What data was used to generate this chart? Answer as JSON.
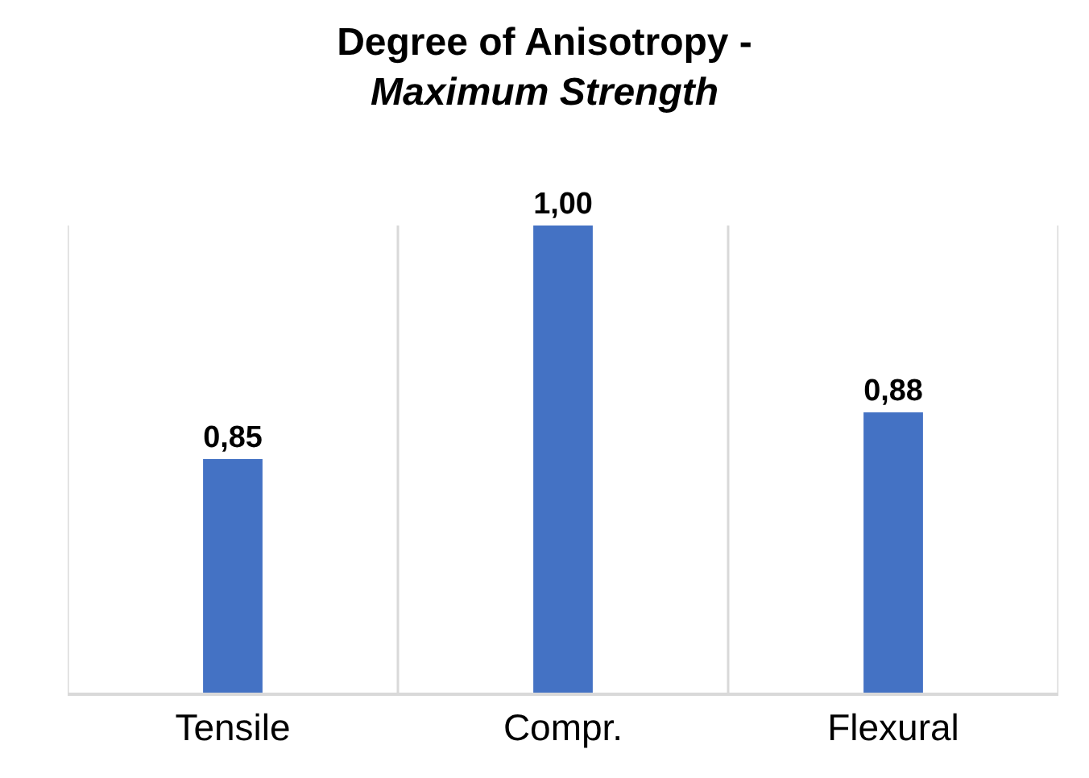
{
  "chart_data": {
    "type": "bar",
    "title": "Degree of Anisotropy -",
    "subtitle": "Maximum Strength",
    "categories": [
      "Tensile",
      "Compr.",
      "Flexural"
    ],
    "values": [
      0.85,
      1.0,
      0.88
    ],
    "value_labels": [
      "0,85",
      "1,00",
      "0,88"
    ],
    "color": "#4472c4",
    "ylim": [
      0.7,
      1.0
    ],
    "tick_labels": "x",
    "grid": "x"
  }
}
